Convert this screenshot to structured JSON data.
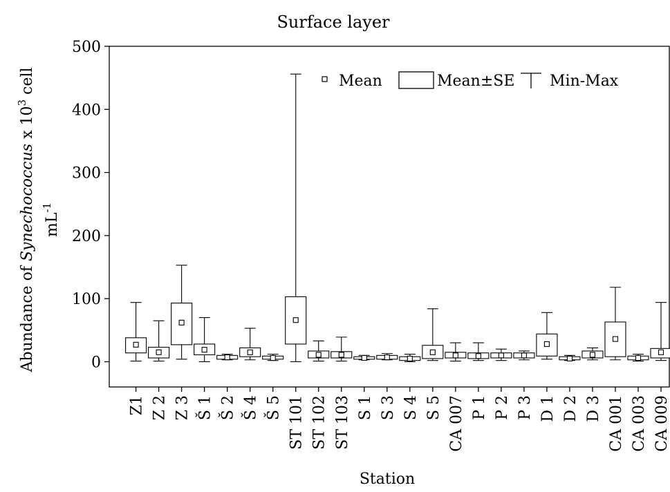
{
  "chart_data": {
    "type": "box",
    "title": "Surface layer",
    "xlabel": "Station",
    "ylabel": {
      "prefix": "Abundance of ",
      "species": "Synechococcus",
      "middle": " x 10",
      "exponent": "3",
      "suffix": " cell",
      "unit_base": "mL",
      "unit_exponent": "-1"
    },
    "ylim": [
      -40,
      500
    ],
    "yticks": [
      0,
      100,
      200,
      300,
      400,
      500
    ],
    "legend": {
      "position": "top-right",
      "items": [
        {
          "marker": "square",
          "label": "Mean"
        },
        {
          "marker": "box",
          "label": "Mean±SE"
        },
        {
          "marker": "whisker",
          "label": "Min-Max"
        }
      ]
    },
    "categories": [
      "Z1",
      "Z 2",
      "Z 3",
      "Š 1",
      "Š 2",
      "Š 4",
      "Š 5",
      "ST 101",
      "ST 102",
      "ST 103",
      "S 1",
      "S 3",
      "S 4",
      "S 5",
      "CA 007",
      "P 1",
      "P 2",
      "P 3",
      "D 1",
      "D 2",
      "D 3",
      "CA 001",
      "CA 003",
      "CA 009"
    ],
    "series": [
      {
        "mean": [
          27,
          15,
          62,
          19,
          7,
          15,
          6,
          66,
          11,
          11,
          6,
          7,
          5,
          15,
          10,
          9,
          10,
          10,
          28,
          5,
          11,
          36,
          6,
          15
        ],
        "se_low": [
          14,
          6,
          27,
          11,
          4,
          8,
          4,
          28,
          6,
          6,
          4,
          4,
          2,
          5,
          6,
          5,
          6,
          6,
          9,
          3,
          6,
          8,
          3,
          6
        ],
        "se_high": [
          38,
          23,
          93,
          28,
          10,
          22,
          9,
          103,
          17,
          16,
          8,
          10,
          8,
          26,
          15,
          14,
          14,
          14,
          44,
          8,
          17,
          63,
          9,
          21
        ],
        "min": [
          1,
          1,
          4,
          0,
          3,
          3,
          2,
          0,
          1,
          1,
          3,
          3,
          0,
          2,
          1,
          2,
          2,
          3,
          4,
          2,
          3,
          3,
          1,
          2
        ],
        "max": [
          94,
          65,
          153,
          70,
          12,
          53,
          12,
          456,
          33,
          39,
          10,
          13,
          12,
          84,
          30,
          30,
          20,
          17,
          78,
          10,
          22,
          118,
          12,
          94
        ]
      }
    ]
  }
}
